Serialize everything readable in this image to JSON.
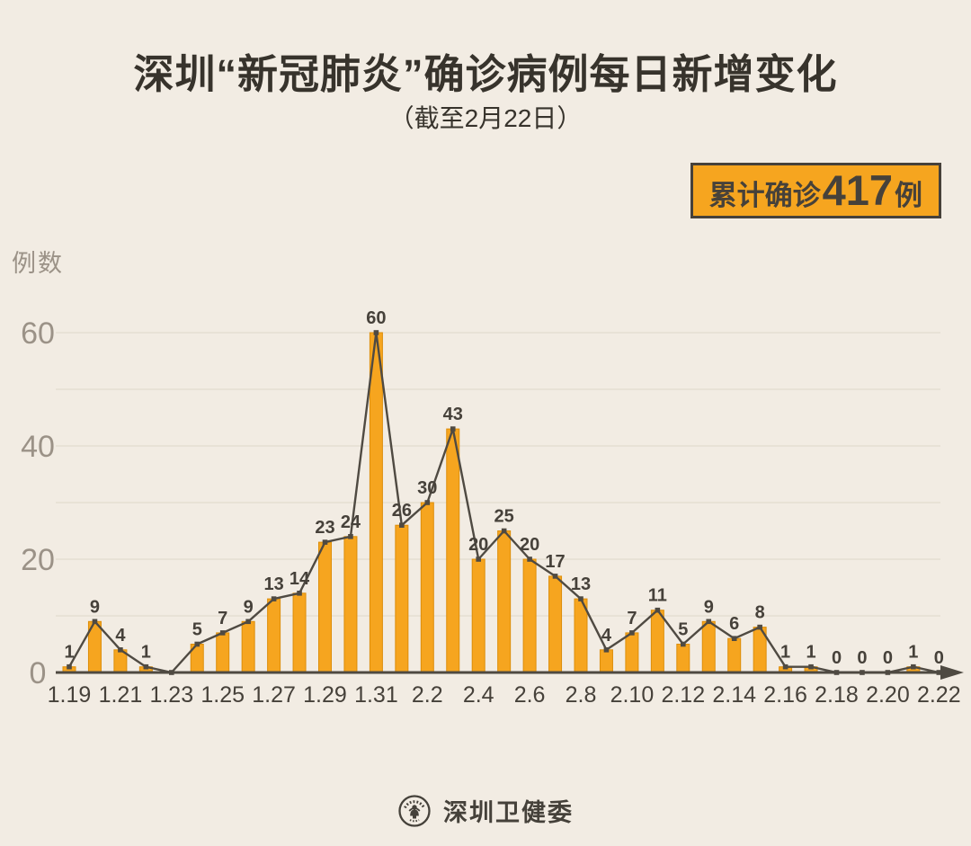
{
  "header": {
    "title": "深圳“新冠肺炎”确诊病例每日新增变化",
    "subtitle": "（截至2月22日）",
    "badge": {
      "prefix": "累计确诊",
      "number": "417",
      "suffix": "例"
    }
  },
  "footer": {
    "org": "深圳卫健委",
    "logo_icon": "shenzhen-health-commission-emblem"
  },
  "colors": {
    "background": "#F2ECE3",
    "bar": "#F6A51F",
    "bar_border": "#DD8E0A",
    "line": "#4F4A42",
    "gridline": "#E3DBCD",
    "text_dark": "#46413A",
    "text_gray": "#9B9287",
    "badge_bg": "#F6A51F",
    "badge_border": "#46413A",
    "title_color": "#37332C"
  },
  "chart_data": {
    "type": "bar",
    "subtype": "bar-with-line-overlay",
    "title": "深圳“新冠肺炎”确诊病例每日新增变化",
    "subtitle": "（截至2月22日）",
    "ylabel": "例数",
    "xlabel": "",
    "cumulative_total": 417,
    "x": [
      "1.19",
      "1.20",
      "1.21",
      "1.22",
      "1.23",
      "1.24",
      "1.25",
      "1.26",
      "1.27",
      "1.28",
      "1.29",
      "1.30",
      "1.31",
      "2.1",
      "2.2",
      "2.3",
      "2.4",
      "2.5",
      "2.6",
      "2.7",
      "2.8",
      "2.9",
      "2.10",
      "2.11",
      "2.12",
      "2.13",
      "2.14",
      "2.15",
      "2.16",
      "2.17",
      "2.18",
      "2.19",
      "2.20",
      "2.21",
      "2.22"
    ],
    "values": [
      1,
      9,
      4,
      1,
      0,
      5,
      7,
      9,
      13,
      14,
      23,
      24,
      60,
      26,
      30,
      43,
      20,
      25,
      20,
      17,
      13,
      4,
      7,
      11,
      5,
      9,
      6,
      8,
      1,
      1,
      0,
      0,
      0,
      1,
      0
    ],
    "point_labels": [
      "1",
      "9",
      "4",
      "1",
      "",
      "5",
      "7",
      "9",
      "13",
      "14",
      "23",
      "24",
      "60",
      "26",
      "30",
      "43",
      "20",
      "25",
      "20",
      "17",
      "13",
      "4",
      "7",
      "11",
      "5",
      "9",
      "6",
      "8",
      "1",
      "1",
      "0",
      "0",
      "0",
      "1",
      "0"
    ],
    "x_tick_labels": [
      "1.19",
      "1.21",
      "1.23",
      "1.25",
      "1.27",
      "1.29",
      "1.31",
      "2.2",
      "2.4",
      "2.6",
      "2.8",
      "2.10",
      "2.12",
      "2.14",
      "2.16",
      "2.18",
      "2.20",
      "2.22"
    ],
    "x_tick_every": 2,
    "yticks": [
      0,
      20,
      40,
      60
    ],
    "gridlines": [
      10,
      20,
      30,
      40,
      50,
      60
    ],
    "ylim": [
      0,
      63
    ],
    "grid": true,
    "legend": false
  }
}
